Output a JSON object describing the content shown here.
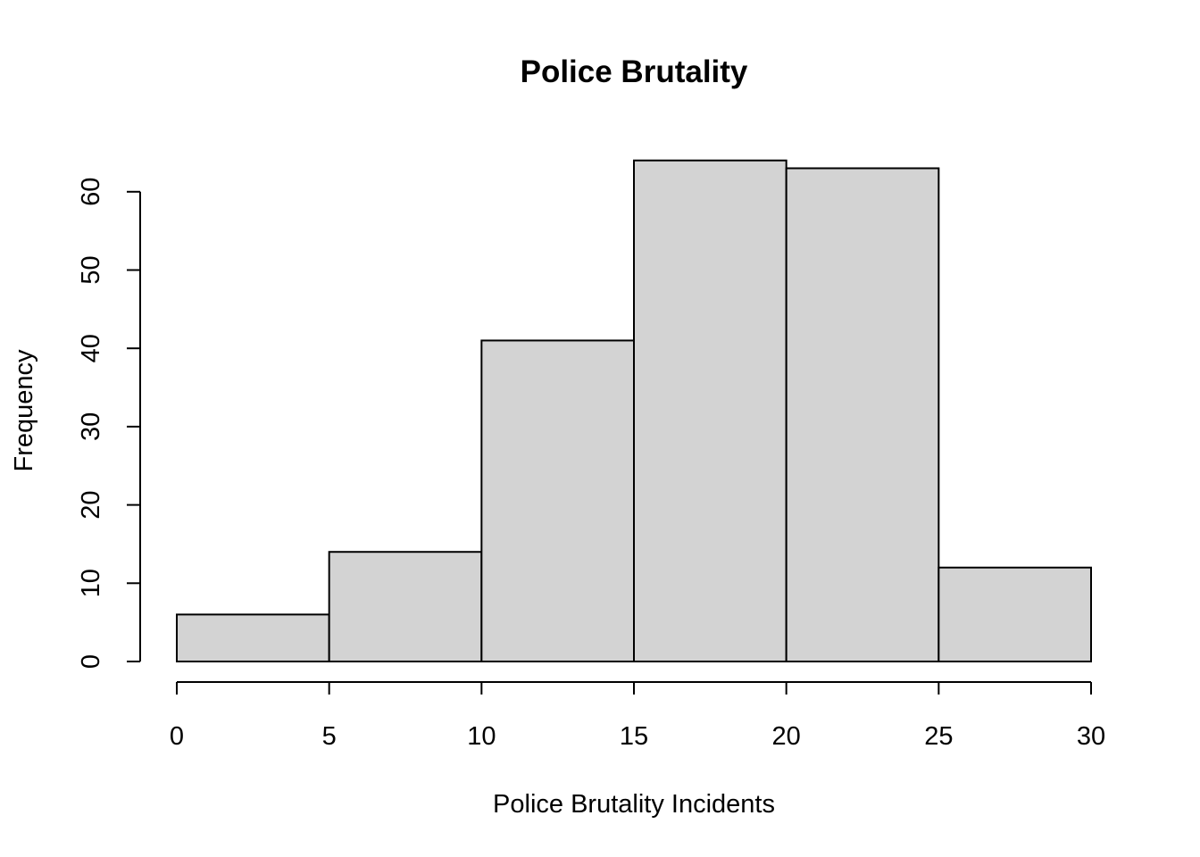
{
  "chart_data": {
    "type": "bar",
    "subtype": "histogram",
    "title": "Police Brutality",
    "xlabel": "Police Brutality Incidents",
    "ylabel": "Frequency",
    "bins": [
      {
        "start": 0,
        "end": 5,
        "count": 6
      },
      {
        "start": 5,
        "end": 10,
        "count": 14
      },
      {
        "start": 10,
        "end": 15,
        "count": 41
      },
      {
        "start": 15,
        "end": 20,
        "count": 64
      },
      {
        "start": 20,
        "end": 25,
        "count": 63
      },
      {
        "start": 25,
        "end": 30,
        "count": 12
      }
    ],
    "x_ticks": [
      0,
      5,
      10,
      15,
      20,
      25,
      30
    ],
    "y_ticks": [
      0,
      10,
      20,
      30,
      40,
      50,
      60
    ],
    "xlim": [
      0,
      30
    ],
    "ylim": [
      0,
      64
    ],
    "bar_color": "#d3d3d3",
    "grid": false,
    "legend": "none"
  }
}
